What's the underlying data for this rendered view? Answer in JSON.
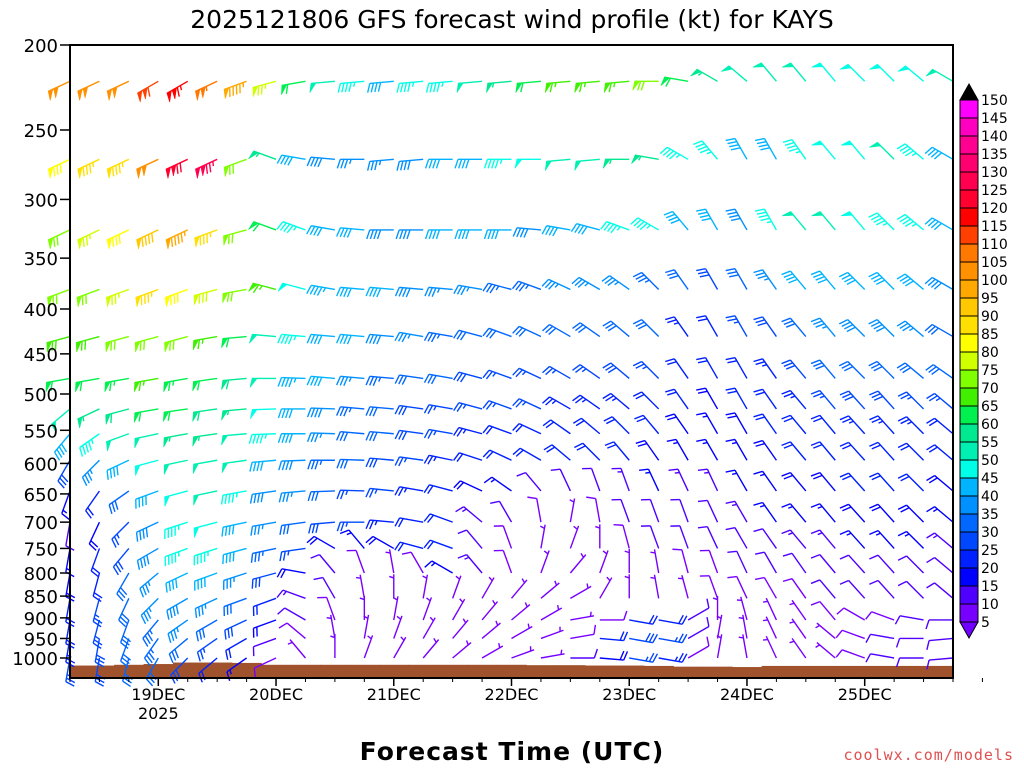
{
  "chart_data": {
    "type": "wind-barb",
    "title": "2025121806 GFS forecast wind profile (kt) for KAYS",
    "xlabel": "Forecast Time (UTC)",
    "ylabel": "",
    "credit": "coolwx.com/models",
    "yticks": [
      "200",
      "250",
      "300",
      "350",
      "400",
      "450",
      "500",
      "550",
      "600",
      "650",
      "700",
      "750",
      "800",
      "850",
      "900",
      "950",
      "1000"
    ],
    "ytick_values": [
      200,
      250,
      300,
      350,
      400,
      450,
      500,
      550,
      600,
      650,
      700,
      750,
      800,
      850,
      900,
      950,
      1000
    ],
    "ylim": [
      200,
      1053
    ],
    "yscale": "log",
    "xticks": [
      "19DEC",
      "20DEC",
      "21DEC",
      "22DEC",
      "23DEC",
      "24DEC",
      "25DEC"
    ],
    "xtick_days": [
      0.75,
      1.75,
      2.75,
      3.75,
      4.75,
      5.75,
      6.75
    ],
    "year_label": "2025",
    "time_step_hours": 6,
    "xlim_days": [
      0,
      7.5
    ],
    "colorbar": {
      "labels": [
        "5",
        "10",
        "15",
        "20",
        "25",
        "30",
        "35",
        "40",
        "45",
        "50",
        "55",
        "60",
        "65",
        "70",
        "75",
        "80",
        "85",
        "90",
        "95",
        "100",
        "105",
        "110",
        "115",
        "120",
        "125",
        "130",
        "135",
        "140",
        "145",
        "150"
      ],
      "under_color": "#7000ff",
      "over_color": "#000000",
      "colors": [
        "#7800ff",
        "#5000ff",
        "#0000ff",
        "#0020ff",
        "#0048ff",
        "#0068ff",
        "#0090ff",
        "#00b4ff",
        "#00ffe6",
        "#00f0b4",
        "#00e890",
        "#00f050",
        "#40f000",
        "#80ff00",
        "#d0ff00",
        "#ffff00",
        "#ffe000",
        "#ffc800",
        "#ffa800",
        "#ff9000",
        "#ff7800",
        "#ff4000",
        "#ff0000",
        "#ff0030",
        "#ff0050",
        "#ff0070",
        "#ff0090",
        "#ff00c0",
        "#ff00ff"
      ]
    },
    "terrain_color": "#a0522d",
    "surface_pressure": [
      1020,
      1020,
      1018,
      1016,
      1012,
      1012,
      1013,
      1018,
      1018,
      1018,
      1018,
      1018,
      1018,
      1018,
      1018,
      1018,
      1019,
      1019,
      1020,
      1020,
      1021,
      1023,
      1023,
      1024,
      1021,
      1021,
      1021,
      1021,
      1021,
      1021,
      1021
    ],
    "levels": [
      220,
      270,
      325,
      380,
      430,
      480,
      520,
      555,
      595,
      645,
      700,
      750,
      800,
      855,
      905,
      950,
      1000
    ],
    "speed": [
      [
        100,
        100,
        100,
        110,
        115,
        105,
        95,
        75,
        60,
        50,
        45,
        42,
        45,
        45,
        50,
        55,
        60,
        65,
        65,
        65,
        70,
        62,
        55,
        50,
        52,
        50,
        48,
        48,
        48,
        48,
        50
      ],
      [
        80,
        85,
        85,
        100,
        120,
        125,
        70,
        55,
        40,
        38,
        36,
        36,
        38,
        40,
        42,
        45,
        48,
        50,
        52,
        55,
        55,
        45,
        45,
        40,
        40,
        45,
        48,
        48,
        50,
        45,
        42
      ],
      [
        70,
        75,
        80,
        90,
        95,
        85,
        70,
        62,
        45,
        40,
        40,
        38,
        38,
        40,
        42,
        40,
        38,
        40,
        42,
        45,
        45,
        40,
        40,
        38,
        45,
        50,
        50,
        48,
        45,
        45,
        40
      ],
      [
        70,
        72,
        75,
        85,
        82,
        78,
        72,
        65,
        48,
        44,
        40,
        40,
        38,
        36,
        35,
        34,
        34,
        35,
        36,
        36,
        34,
        30,
        28,
        30,
        35,
        40,
        40,
        42,
        42,
        40,
        38
      ],
      [
        68,
        68,
        70,
        72,
        70,
        65,
        60,
        50,
        46,
        42,
        40,
        38,
        35,
        33,
        32,
        30,
        30,
        30,
        30,
        30,
        30,
        24,
        22,
        25,
        28,
        32,
        35,
        38,
        38,
        36,
        32
      ],
      [
        62,
        62,
        64,
        66,
        64,
        60,
        58,
        50,
        44,
        40,
        36,
        34,
        32,
        30,
        28,
        27,
        26,
        26,
        26,
        28,
        26,
        22,
        20,
        22,
        24,
        28,
        30,
        32,
        32,
        30,
        30
      ],
      [
        50,
        55,
        58,
        60,
        60,
        58,
        55,
        48,
        42,
        38,
        34,
        30,
        28,
        27,
        26,
        25,
        25,
        24,
        24,
        24,
        22,
        20,
        18,
        20,
        22,
        24,
        26,
        28,
        28,
        26,
        26
      ],
      [
        40,
        45,
        50,
        52,
        55,
        55,
        52,
        45,
        40,
        35,
        32,
        30,
        28,
        26,
        24,
        22,
        22,
        22,
        22,
        22,
        20,
        18,
        16,
        18,
        20,
        22,
        22,
        24,
        24,
        24,
        22
      ],
      [
        28,
        35,
        42,
        48,
        50,
        52,
        50,
        42,
        38,
        34,
        30,
        28,
        26,
        24,
        22,
        20,
        20,
        20,
        20,
        20,
        18,
        16,
        16,
        16,
        18,
        20,
        20,
        22,
        22,
        22,
        20
      ],
      [
        15,
        22,
        32,
        42,
        48,
        50,
        45,
        38,
        35,
        30,
        27,
        25,
        24,
        22,
        18,
        15,
        12,
        10,
        12,
        14,
        15,
        14,
        14,
        15,
        16,
        18,
        18,
        20,
        20,
        20,
        18
      ],
      [
        12,
        18,
        25,
        38,
        45,
        48,
        42,
        36,
        32,
        28,
        25,
        23,
        22,
        20,
        14,
        10,
        8,
        7,
        8,
        10,
        12,
        12,
        12,
        14,
        15,
        16,
        16,
        18,
        18,
        18,
        16
      ],
      [
        15,
        20,
        28,
        38,
        45,
        46,
        40,
        34,
        25,
        18,
        15,
        18,
        22,
        20,
        12,
        8,
        6,
        6,
        7,
        8,
        10,
        10,
        10,
        12,
        12,
        14,
        14,
        15,
        15,
        15,
        14
      ],
      [
        18,
        22,
        30,
        35,
        40,
        42,
        36,
        28,
        18,
        12,
        8,
        7,
        8,
        15,
        14,
        8,
        6,
        5,
        5,
        6,
        7,
        8,
        8,
        10,
        10,
        10,
        12,
        12,
        12,
        12,
        12
      ],
      [
        20,
        25,
        30,
        35,
        38,
        36,
        32,
        22,
        14,
        10,
        7,
        6,
        6,
        6,
        6,
        6,
        5,
        6,
        6,
        6,
        6,
        7,
        8,
        8,
        8,
        8,
        10,
        10,
        10,
        10,
        10
      ],
      [
        22,
        26,
        30,
        34,
        35,
        32,
        28,
        18,
        12,
        8,
        6,
        5,
        5,
        6,
        6,
        5,
        5,
        6,
        8,
        20,
        20,
        10,
        6,
        6,
        6,
        6,
        8,
        8,
        8,
        10,
        10
      ],
      [
        24,
        28,
        32,
        34,
        30,
        26,
        22,
        12,
        8,
        6,
        5,
        5,
        5,
        6,
        5,
        5,
        5,
        8,
        22,
        28,
        26,
        10,
        6,
        6,
        5,
        5,
        6,
        8,
        10,
        12,
        10
      ],
      [
        26,
        28,
        30,
        30,
        28,
        22,
        15,
        8,
        6,
        5,
        5,
        6,
        5,
        5,
        5,
        5,
        5,
        10,
        18,
        25,
        24,
        8,
        5,
        5,
        5,
        5,
        5,
        8,
        10,
        12,
        10
      ]
    ],
    "direction": [
      [
        245,
        245,
        245,
        240,
        240,
        245,
        250,
        255,
        260,
        265,
        265,
        265,
        265,
        265,
        265,
        265,
        265,
        265,
        265,
        265,
        270,
        280,
        300,
        310,
        320,
        320,
        320,
        315,
        315,
        310,
        300
      ],
      [
        245,
        245,
        245,
        245,
        245,
        245,
        250,
        290,
        280,
        275,
        270,
        265,
        265,
        270,
        270,
        270,
        270,
        265,
        265,
        270,
        280,
        300,
        320,
        330,
        330,
        325,
        320,
        320,
        315,
        310,
        300
      ],
      [
        245,
        245,
        245,
        245,
        245,
        250,
        255,
        290,
        290,
        280,
        275,
        270,
        270,
        270,
        270,
        270,
        275,
        280,
        285,
        290,
        300,
        320,
        330,
        330,
        330,
        320,
        320,
        320,
        315,
        310,
        300
      ],
      [
        250,
        250,
        250,
        250,
        250,
        255,
        260,
        285,
        285,
        280,
        275,
        275,
        275,
        275,
        280,
        285,
        290,
        295,
        300,
        305,
        315,
        325,
        330,
        330,
        325,
        320,
        320,
        315,
        315,
        310,
        300
      ],
      [
        255,
        255,
        255,
        255,
        255,
        260,
        265,
        275,
        275,
        275,
        275,
        275,
        280,
        280,
        285,
        290,
        295,
        300,
        305,
        310,
        315,
        325,
        330,
        330,
        325,
        320,
        320,
        315,
        315,
        310,
        300
      ],
      [
        260,
        260,
        260,
        260,
        260,
        262,
        265,
        270,
        272,
        275,
        275,
        275,
        278,
        280,
        285,
        290,
        295,
        300,
        305,
        310,
        315,
        325,
        330,
        330,
        325,
        320,
        320,
        315,
        315,
        310,
        305
      ],
      [
        230,
        245,
        255,
        260,
        262,
        262,
        265,
        268,
        270,
        272,
        275,
        275,
        278,
        280,
        285,
        290,
        295,
        300,
        305,
        310,
        315,
        325,
        330,
        330,
        325,
        320,
        320,
        318,
        318,
        315,
        310
      ],
      [
        220,
        235,
        250,
        258,
        260,
        262,
        265,
        268,
        270,
        272,
        275,
        275,
        278,
        280,
        285,
        290,
        295,
        305,
        310,
        315,
        320,
        325,
        330,
        330,
        325,
        320,
        320,
        318,
        318,
        315,
        310
      ],
      [
        210,
        225,
        245,
        255,
        258,
        260,
        262,
        265,
        268,
        270,
        272,
        275,
        278,
        282,
        288,
        295,
        300,
        310,
        315,
        320,
        325,
        330,
        330,
        330,
        325,
        320,
        320,
        318,
        318,
        315,
        310
      ],
      [
        200,
        215,
        235,
        250,
        255,
        258,
        260,
        262,
        265,
        268,
        272,
        276,
        280,
        285,
        295,
        305,
        320,
        335,
        340,
        340,
        335,
        335,
        335,
        330,
        325,
        320,
        320,
        318,
        318,
        315,
        310
      ],
      [
        190,
        205,
        225,
        245,
        252,
        255,
        258,
        260,
        262,
        265,
        270,
        275,
        280,
        290,
        310,
        330,
        350,
        10,
        350,
        340,
        340,
        340,
        335,
        330,
        325,
        320,
        320,
        318,
        318,
        315,
        310
      ],
      [
        190,
        200,
        220,
        240,
        250,
        252,
        255,
        258,
        262,
        300,
        320,
        300,
        285,
        290,
        320,
        340,
        10,
        20,
        360,
        345,
        340,
        340,
        335,
        330,
        325,
        320,
        320,
        318,
        318,
        315,
        310
      ],
      [
        190,
        195,
        210,
        230,
        245,
        250,
        252,
        255,
        280,
        320,
        340,
        350,
        330,
        300,
        320,
        340,
        20,
        40,
        20,
        360,
        350,
        345,
        340,
        335,
        330,
        325,
        320,
        318,
        318,
        315,
        310
      ],
      [
        190,
        195,
        205,
        225,
        240,
        245,
        250,
        250,
        290,
        330,
        350,
        360,
        10,
        20,
        30,
        40,
        50,
        60,
        30,
        360,
        350,
        345,
        340,
        335,
        330,
        325,
        320,
        318,
        318,
        315,
        310
      ],
      [
        190,
        195,
        200,
        220,
        235,
        240,
        245,
        250,
        300,
        340,
        360,
        10,
        20,
        30,
        40,
        50,
        60,
        80,
        90,
        100,
        100,
        60,
        360,
        345,
        335,
        325,
        320,
        300,
        290,
        280,
        270
      ],
      [
        190,
        190,
        200,
        215,
        230,
        235,
        240,
        250,
        310,
        350,
        10,
        20,
        30,
        40,
        50,
        60,
        70,
        80,
        95,
        100,
        100,
        60,
        10,
        350,
        335,
        325,
        310,
        290,
        280,
        270,
        265
      ],
      [
        190,
        190,
        195,
        210,
        225,
        230,
        235,
        245,
        320,
        360,
        20,
        30,
        40,
        50,
        60,
        70,
        80,
        90,
        95,
        100,
        100,
        60,
        10,
        350,
        335,
        325,
        310,
        290,
        280,
        270,
        265
      ]
    ]
  }
}
